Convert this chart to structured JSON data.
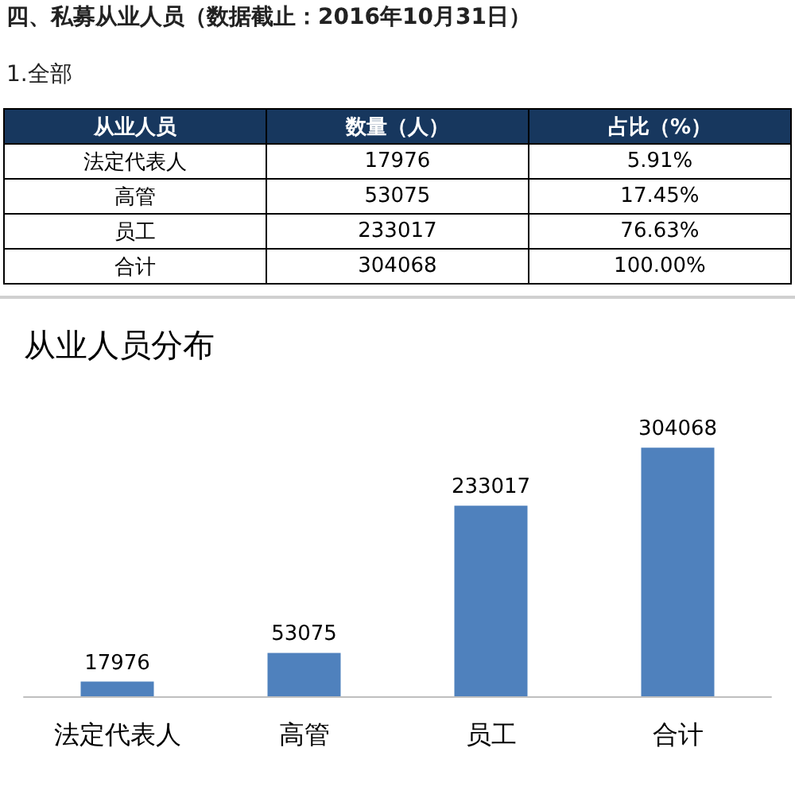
{
  "chart_data": [
    {
      "type": "other",
      "title": "四、私募从业人员（数据截止：2016年10月31日）",
      "subtitle": "1.全部",
      "xlabel": "从业人员",
      "categories": [
        "法定代表人",
        "高管",
        "员工",
        "合计"
      ],
      "data_labels": true,
      "series": [
        {
          "name": "数量（人）",
          "values": [
            17976,
            53075,
            233017,
            304068
          ]
        },
        {
          "name": "占比（%）",
          "values": [
            5.91,
            17.45,
            76.63,
            100
          ],
          "value_labels": [
            "5.91%",
            "17.45%",
            "76.63%",
            "100.00%"
          ]
        }
      ]
    },
    {
      "type": "bar",
      "title": "从业人员分布",
      "categories": [
        "法定代表人",
        "高管",
        "员工",
        "合计"
      ],
      "values": [
        17976,
        53075,
        233017,
        304068
      ],
      "color": "#4f81bd",
      "data_labels": true
    }
  ]
}
